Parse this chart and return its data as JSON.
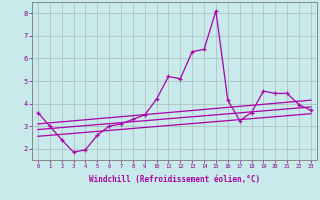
{
  "xlabel": "Windchill (Refroidissement éolien,°C)",
  "bg_color": "#c8eaea",
  "grid_color": "#aabbbb",
  "line_color": "#aa00aa",
  "xlim": [
    -0.5,
    23.5
  ],
  "ylim": [
    1.5,
    8.5
  ],
  "yticks": [
    2,
    3,
    4,
    5,
    6,
    7,
    8
  ],
  "xtick_labels": [
    "0",
    "1",
    "2",
    "3",
    "4",
    "5",
    "6",
    "7",
    "8",
    "9",
    "10",
    "11",
    "12",
    "13",
    "14",
    "15",
    "16",
    "17",
    "18",
    "19",
    "20",
    "21",
    "22",
    "23"
  ],
  "series1_x": [
    0,
    1,
    2,
    3,
    4,
    5,
    6,
    7,
    8,
    9,
    10,
    11,
    12,
    13,
    14,
    15,
    16,
    17,
    18,
    19,
    20,
    21,
    22,
    23
  ],
  "series1_y": [
    3.6,
    3.0,
    2.4,
    1.85,
    1.95,
    2.6,
    3.0,
    3.1,
    3.3,
    3.5,
    4.2,
    5.2,
    5.1,
    6.3,
    6.4,
    8.1,
    4.15,
    3.25,
    3.6,
    4.55,
    4.45,
    4.45,
    3.95,
    3.7
  ],
  "series2_x": [
    0,
    23
  ],
  "series2_y": [
    2.55,
    3.55
  ],
  "series3_x": [
    0,
    23
  ],
  "series3_y": [
    2.85,
    3.85
  ],
  "series4_x": [
    0,
    23
  ],
  "series4_y": [
    3.1,
    4.15
  ]
}
